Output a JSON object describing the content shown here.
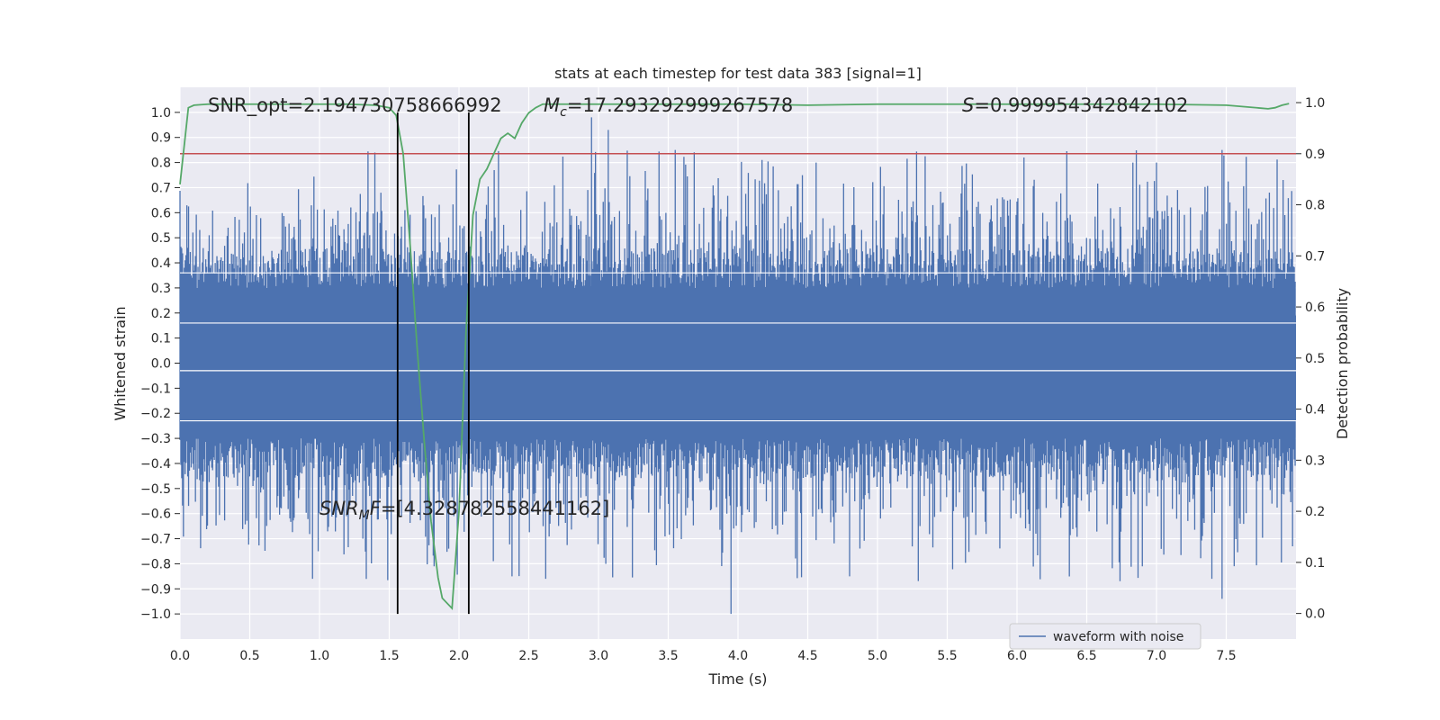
{
  "chart_data": {
    "type": "line",
    "title": "stats at each timestep for test data 383 [signal=1]",
    "xlabel": "Time (s)",
    "ylabel": "Whitened strain",
    "y2label": "Detection probability",
    "xlim": [
      0,
      8.0
    ],
    "ylim": [
      -1.1,
      1.1
    ],
    "y2lim": [
      -0.05,
      1.03
    ],
    "grid": true,
    "legend_position": "bottom-right",
    "x_ticks": [
      "0.0",
      "0.5",
      "1.0",
      "1.5",
      "2.0",
      "2.5",
      "3.0",
      "3.5",
      "4.0",
      "4.5",
      "5.0",
      "5.5",
      "6.0",
      "6.5",
      "7.0",
      "7.5"
    ],
    "x_tick_values": [
      0,
      0.5,
      1,
      1.5,
      2,
      2.5,
      3,
      3.5,
      4,
      4.5,
      5,
      5.5,
      6,
      6.5,
      7,
      7.5
    ],
    "y_ticks": [
      "1.0",
      "0.9",
      "0.8",
      "0.7",
      "0.6",
      "0.5",
      "0.4",
      "0.3",
      "0.2",
      "0.1",
      "0.0",
      "−0.1",
      "−0.2",
      "−0.3",
      "−0.4",
      "−0.5",
      "−0.6",
      "−0.7",
      "−0.8",
      "−0.9",
      "−1.0"
    ],
    "y_tick_values": [
      1.0,
      0.9,
      0.8,
      0.7,
      0.6,
      0.5,
      0.4,
      0.3,
      0.2,
      0.1,
      0.0,
      -0.1,
      -0.2,
      -0.3,
      -0.4,
      -0.5,
      -0.6,
      -0.7,
      -0.8,
      -0.9,
      -1.0
    ],
    "y2_ticks": [
      "1.0",
      "0.9",
      "0.8",
      "0.7",
      "0.6",
      "0.5",
      "0.4",
      "0.3",
      "0.2",
      "0.1",
      "0.0"
    ],
    "y2_tick_values": [
      1.0,
      0.9,
      0.8,
      0.7,
      0.6,
      0.5,
      0.4,
      0.3,
      0.2,
      0.1,
      0.0
    ],
    "series": [
      {
        "name": "waveform with noise",
        "axis": "left",
        "color": "#4c72b0",
        "kind": "noise",
        "n_samples": 1300,
        "typical_upper": 0.4,
        "typical_lower": -0.4,
        "peak_max": 0.98,
        "peak_min": -1.0
      },
      {
        "name": "detection probability",
        "axis": "right",
        "color": "#55a868",
        "x": [
          0.0,
          0.06,
          0.1,
          0.2,
          0.4,
          0.6,
          0.8,
          1.0,
          1.2,
          1.4,
          1.5,
          1.55,
          1.6,
          1.65,
          1.7,
          1.75,
          1.8,
          1.85,
          1.88,
          1.95,
          2.0,
          2.05,
          2.1,
          2.15,
          2.2,
          2.3,
          2.35,
          2.4,
          2.45,
          2.5,
          2.55,
          2.6,
          2.7,
          2.8,
          3.0,
          3.5,
          4.0,
          4.5,
          5.0,
          5.5,
          6.0,
          6.5,
          7.0,
          7.5,
          7.8,
          7.85,
          7.9,
          7.95
        ],
        "values": [
          0.84,
          0.99,
          0.995,
          0.997,
          0.997,
          0.997,
          0.997,
          0.997,
          0.997,
          0.995,
          0.99,
          0.975,
          0.9,
          0.72,
          0.52,
          0.34,
          0.18,
          0.07,
          0.03,
          0.01,
          0.2,
          0.55,
          0.78,
          0.85,
          0.87,
          0.93,
          0.94,
          0.93,
          0.96,
          0.98,
          0.99,
          0.997,
          0.997,
          0.997,
          0.997,
          0.997,
          0.997,
          0.995,
          0.997,
          0.997,
          0.997,
          0.997,
          0.997,
          0.995,
          0.988,
          0.99,
          0.995,
          0.998
        ]
      }
    ],
    "threshold": {
      "axis": "right",
      "value": 0.9,
      "color": "#c44e52"
    },
    "vlines": [
      1.56,
      2.07
    ],
    "vline_span": [
      -1.0,
      1.0
    ],
    "vline_color": "#000000",
    "annotations": {
      "snr_opt": "SNR_opt=2.194730758666992",
      "mc": "=17.293292999267578",
      "s": "=0.999954342842102",
      "snr_mf": "=[4.328782558441162]"
    },
    "legend_entry": "waveform with noise"
  }
}
